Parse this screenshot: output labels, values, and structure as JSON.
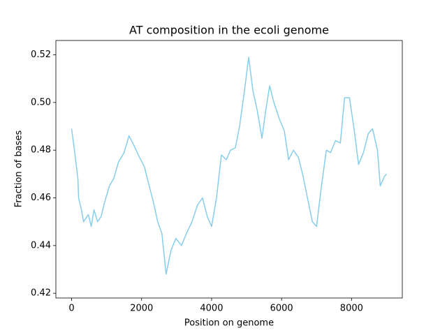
{
  "chart_data": {
    "type": "line",
    "title": "AT composition in the ecoli genome",
    "xlabel": "Position on genome",
    "ylabel": "Fraction of bases",
    "color": "#87ceeb",
    "x": [
      0,
      80,
      180,
      200,
      280,
      340,
      480,
      560,
      640,
      740,
      840,
      940,
      1080,
      1200,
      1340,
      1500,
      1640,
      1780,
      1940,
      2080,
      2200,
      2340,
      2460,
      2580,
      2700,
      2840,
      2980,
      3140,
      3280,
      3440,
      3600,
      3740,
      3880,
      4000,
      4140,
      4280,
      4420,
      4540,
      4680,
      4800,
      4940,
      5060,
      5180,
      5300,
      5440,
      5540,
      5660,
      5780,
      5940,
      6080,
      6200,
      6340,
      6480,
      6600,
      6740,
      6880,
      7000,
      7140,
      7280,
      7400,
      7540,
      7680,
      7800,
      7940,
      8080,
      8200,
      8340,
      8480,
      8600,
      8740,
      8820,
      8940,
      9000
    ],
    "values": [
      0.489,
      0.48,
      0.468,
      0.46,
      0.455,
      0.45,
      0.453,
      0.448,
      0.455,
      0.45,
      0.452,
      0.458,
      0.465,
      0.468,
      0.475,
      0.479,
      0.486,
      0.482,
      0.477,
      0.473,
      0.466,
      0.458,
      0.45,
      0.445,
      0.428,
      0.438,
      0.443,
      0.44,
      0.445,
      0.45,
      0.457,
      0.46,
      0.452,
      0.448,
      0.46,
      0.478,
      0.476,
      0.48,
      0.481,
      0.49,
      0.505,
      0.519,
      0.505,
      0.497,
      0.485,
      0.496,
      0.507,
      0.5,
      0.493,
      0.488,
      0.476,
      0.48,
      0.477,
      0.47,
      0.46,
      0.45,
      0.448,
      0.465,
      0.48,
      0.479,
      0.484,
      0.483,
      0.502,
      0.502,
      0.488,
      0.474,
      0.479,
      0.487,
      0.489,
      0.48,
      0.465,
      0.469,
      0.47
    ],
    "xlim": [
      -450,
      9450
    ],
    "ylim": [
      0.418,
      0.526
    ],
    "xticks": [
      0,
      2000,
      4000,
      6000,
      8000
    ],
    "yticks": [
      0.42,
      0.44,
      0.46,
      0.48,
      {
        "value": 0.5,
        "label": "0.50"
      },
      0.52
    ]
  }
}
